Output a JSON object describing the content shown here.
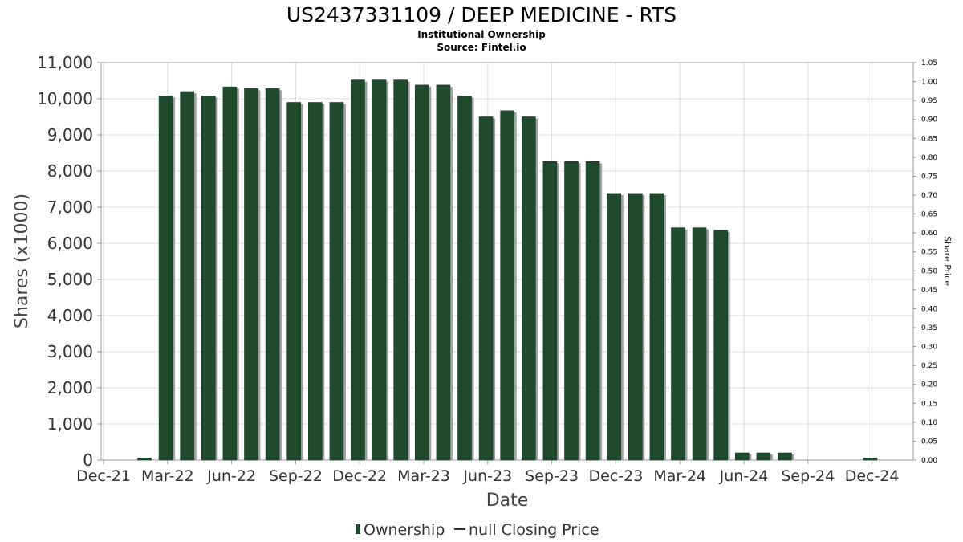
{
  "title": "US2437331109 / DEEP MEDICINE - RTS",
  "subtitle": "Institutional Ownership",
  "source": "Source: Fintel.io",
  "colors": {
    "bar": "#1f4a2b",
    "bar_shadow": "#a0a0a0",
    "grid": "#dcdcdc",
    "axis": "#999999"
  },
  "chart_data": {
    "type": "bar",
    "xlabel": "Date",
    "ylabel": "Shares (x1000)",
    "y2label": "Share Price",
    "ylim": [
      0,
      11000
    ],
    "y2lim": [
      0,
      1.05
    ],
    "yticks": [
      "0",
      "1,000",
      "2,000",
      "3,000",
      "4,000",
      "5,000",
      "6,000",
      "7,000",
      "8,000",
      "9,000",
      "10,000",
      "11,000"
    ],
    "y2ticks": [
      "0.00",
      "0.05",
      "0.10",
      "0.15",
      "0.20",
      "0.25",
      "0.30",
      "0.35",
      "0.40",
      "0.45",
      "0.50",
      "0.55",
      "0.60",
      "0.65",
      "0.70",
      "0.75",
      "0.80",
      "0.85",
      "0.90",
      "0.95",
      "1.00",
      "1.05"
    ],
    "xticks": [
      "Dec-21",
      "Mar-22",
      "Jun-22",
      "Sep-22",
      "Dec-22",
      "Mar-23",
      "Jun-23",
      "Sep-23",
      "Dec-23",
      "Mar-24",
      "Jun-24",
      "Sep-24",
      "Dec-24"
    ],
    "grid": true,
    "legend_position": "bottom",
    "series": [
      {
        "name": "Ownership",
        "values": [
          60,
          10080,
          10200,
          10080,
          10330,
          10280,
          10280,
          9900,
          9900,
          9900,
          10520,
          10520,
          10520,
          10380,
          10380,
          10080,
          9500,
          9670,
          9500,
          8260,
          8260,
          8260,
          7380,
          7380,
          7380,
          6430,
          6430,
          6360,
          200,
          200,
          200,
          60
        ]
      },
      {
        "name": "null Closing Price",
        "values": []
      }
    ]
  }
}
